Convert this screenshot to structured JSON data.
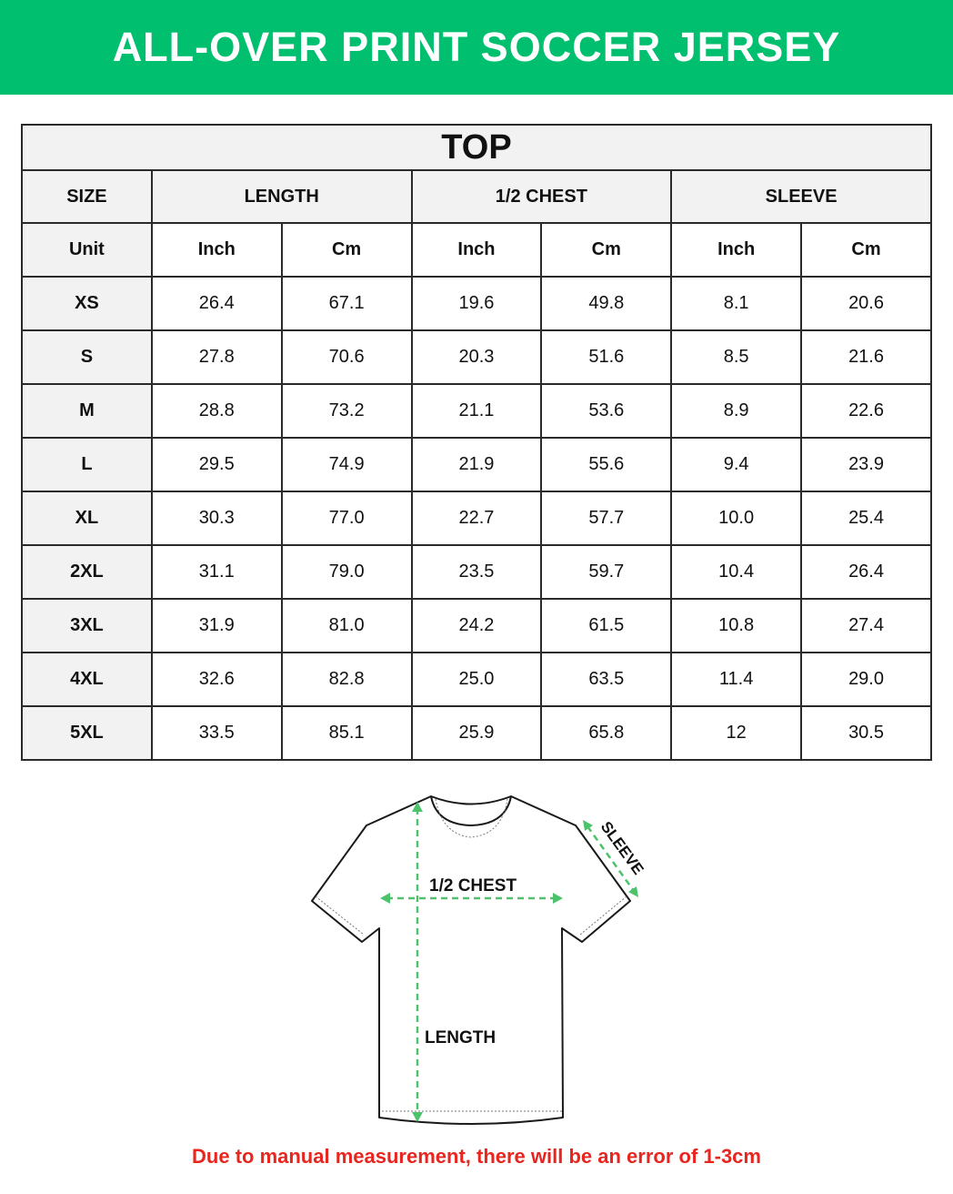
{
  "banner": {
    "title": "ALL-OVER PRINT SOCCER JERSEY",
    "color": "#00bf6f"
  },
  "table": {
    "title": "TOP",
    "headers": [
      "SIZE",
      "LENGTH",
      "1/2 CHEST",
      "SLEEVE"
    ],
    "units": [
      "Unit",
      "Inch",
      "Cm",
      "Inch",
      "Cm",
      "Inch",
      "Cm"
    ],
    "rows": [
      [
        "XS",
        "26.4",
        "67.1",
        "19.6",
        "49.8",
        "8.1",
        "20.6"
      ],
      [
        "S",
        "27.8",
        "70.6",
        "20.3",
        "51.6",
        "8.5",
        "21.6"
      ],
      [
        "M",
        "28.8",
        "73.2",
        "21.1",
        "53.6",
        "8.9",
        "22.6"
      ],
      [
        "L",
        "29.5",
        "74.9",
        "21.9",
        "55.6",
        "9.4",
        "23.9"
      ],
      [
        "XL",
        "30.3",
        "77.0",
        "22.7",
        "57.7",
        "10.0",
        "25.4"
      ],
      [
        "2XL",
        "31.1",
        "79.0",
        "23.5",
        "59.7",
        "10.4",
        "26.4"
      ],
      [
        "3XL",
        "31.9",
        "81.0",
        "24.2",
        "61.5",
        "10.8",
        "27.4"
      ],
      [
        "4XL",
        "32.6",
        "82.8",
        "25.0",
        "63.5",
        "11.4",
        "29.0"
      ],
      [
        "5XL",
        "33.5",
        "85.1",
        "25.9",
        "65.8",
        "12",
        "30.5"
      ]
    ]
  },
  "diagram": {
    "chest_label": "1/2 CHEST",
    "length_label": "LENGTH",
    "sleeve_label": "SLEEVE",
    "measure_color": "#4cc36a"
  },
  "footer": {
    "note": "Due to manual measurement, there will be an error of 1-3cm",
    "color": "#e8251f"
  }
}
